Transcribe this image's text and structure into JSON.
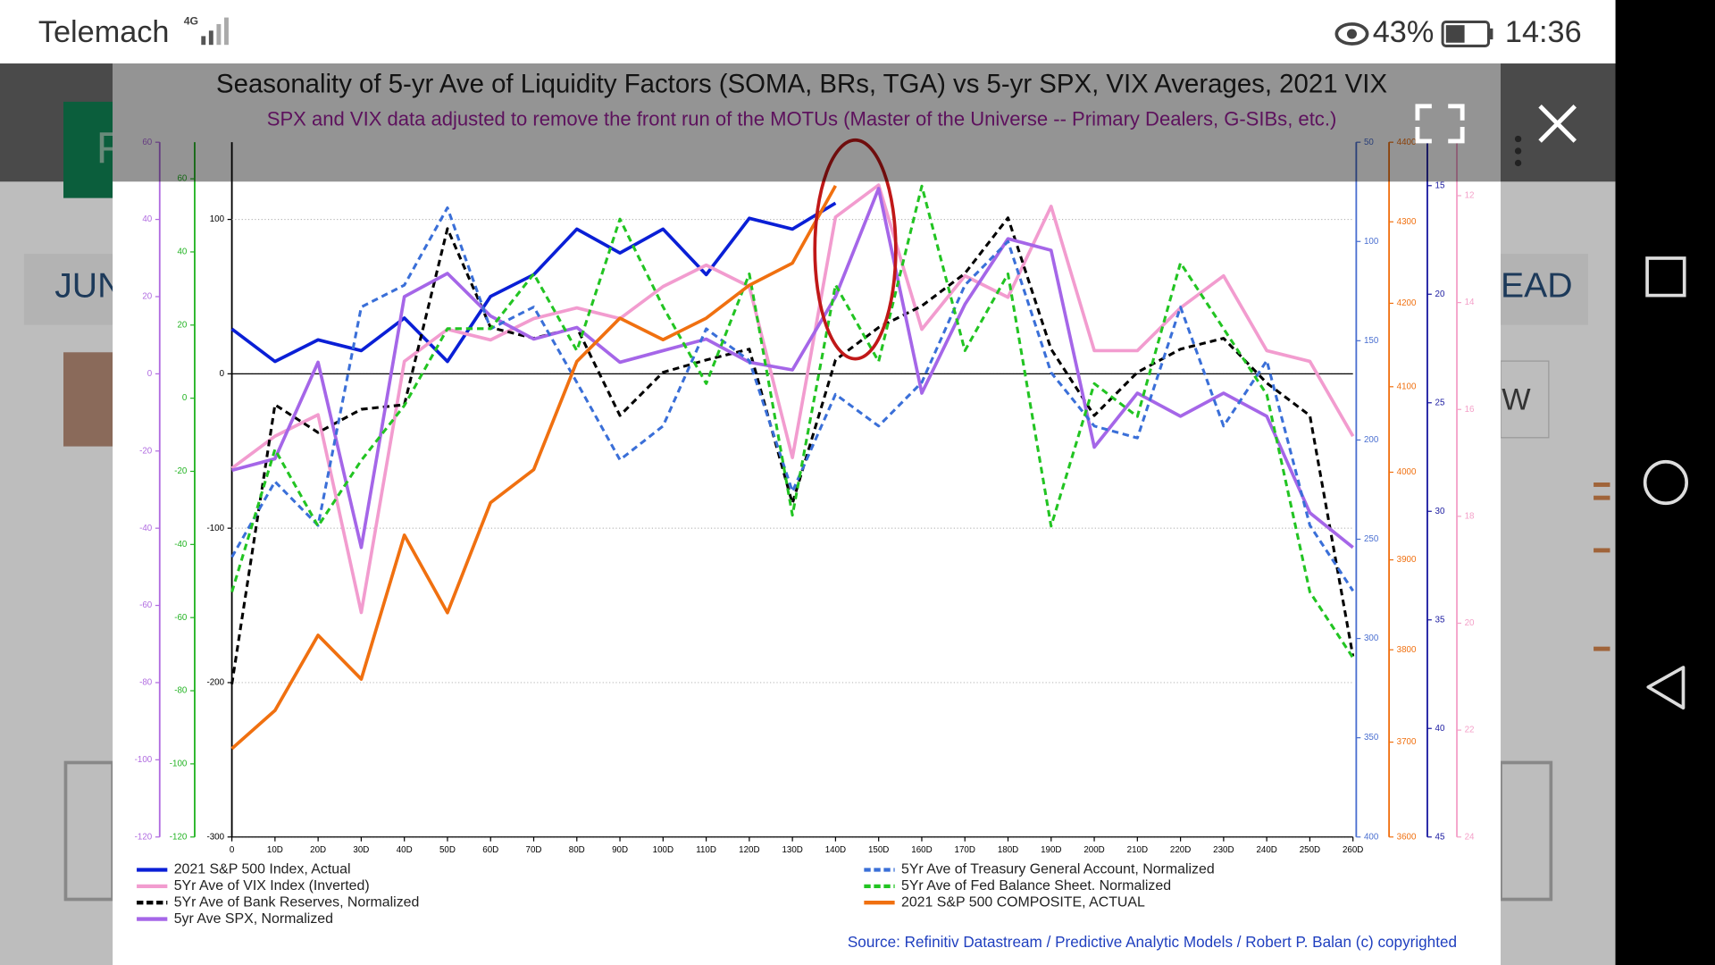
{
  "status_bar": {
    "carrier": "Telemach",
    "network": "4G",
    "battery": "43%",
    "time": "14:36"
  },
  "background_app": {
    "texts": [
      "F",
      "JUN",
      "EAD",
      "W"
    ]
  },
  "chart_data": {
    "type": "line",
    "title": "Seasonality of 5-yr Ave of Liquidity Factors (SOMA, BRs, TGA) vs 5-yr SPX, VIX Averages, 2021 VIX",
    "subtitle": "SPX and VIX data adjusted to remove the front run of the MOTUs (Master of the Universe -- Primary Dealers, G-SIBs, etc.)",
    "source": "Source: Refinitiv Datastream / Predictive Analytic Models / Robert P. Balan (c) copyrighted",
    "x": [
      0,
      10,
      20,
      30,
      40,
      50,
      60,
      70,
      80,
      90,
      100,
      110,
      120,
      130,
      140,
      150,
      160,
      170,
      180,
      190,
      200,
      210,
      220,
      230,
      240,
      250,
      260
    ],
    "xlim": [
      0,
      260
    ],
    "xticks": [
      0,
      {
        "value": 10,
        "label": "10D"
      },
      {
        "value": 20,
        "label": "20D"
      },
      {
        "value": 30,
        "label": "30D"
      },
      {
        "value": 40,
        "label": "40D"
      },
      {
        "value": 50,
        "label": "50D"
      },
      {
        "value": 60,
        "label": "60D"
      },
      {
        "value": 70,
        "label": "70D"
      },
      {
        "value": 80,
        "label": "80D"
      },
      {
        "value": 90,
        "label": "90D"
      },
      {
        "value": 100,
        "label": "100D"
      },
      {
        "value": 110,
        "label": "110D"
      },
      {
        "value": 120,
        "label": "120D"
      },
      {
        "value": 130,
        "label": "130D"
      },
      {
        "value": 140,
        "label": "140D"
      },
      {
        "value": 150,
        "label": "150D"
      },
      {
        "value": 160,
        "label": "160D"
      },
      {
        "value": 170,
        "label": "170D"
      },
      {
        "value": 180,
        "label": "180D"
      },
      {
        "value": 190,
        "label": "190D"
      },
      {
        "value": 200,
        "label": "200D"
      },
      {
        "value": 210,
        "label": "210D"
      },
      {
        "value": 220,
        "label": "220D"
      },
      {
        "value": 230,
        "label": "230D"
      },
      {
        "value": 240,
        "label": "240D"
      },
      {
        "value": 250,
        "label": "250D"
      },
      {
        "value": 260,
        "label": "260D"
      }
    ],
    "axes": [
      {
        "color": "#b06be0",
        "ylim": [
          -120,
          60
        ],
        "yticks": [
          -120,
          -100,
          -80,
          -60,
          -40,
          -20,
          0,
          20,
          40,
          60
        ]
      },
      {
        "color": "#22b322",
        "ylim": [
          -120,
          70
        ],
        "yticks": [
          -120,
          -100,
          -80,
          -60,
          -40,
          -20,
          0,
          20,
          40,
          60
        ]
      },
      {
        "color": "#000000",
        "ylim": [
          -300,
          150
        ],
        "yticks": [
          -300,
          -200,
          -100,
          0,
          100
        ],
        "grid": true
      },
      {
        "color": "#4a6fd0",
        "ylim": [
          400,
          50
        ],
        "yticks": [
          400,
          350,
          300,
          250,
          200,
          150,
          100,
          50
        ]
      },
      {
        "color": "#f07010",
        "ylim": [
          3600,
          4400
        ],
        "log": true,
        "yticks": [
          3600,
          3700,
          3800,
          3900,
          4000,
          4100,
          4200,
          4300,
          4400
        ]
      },
      {
        "color": "#1a1aa0",
        "ylim": [
          45,
          13
        ],
        "yticks": [
          45,
          40,
          35,
          30,
          25,
          20,
          15
        ]
      },
      {
        "color": "#f4a0c8",
        "ylim": [
          24,
          11
        ],
        "yticks": [
          24,
          22,
          20,
          18,
          16,
          14,
          12
        ]
      }
    ],
    "series": [
      {
        "name": "2021 S&P 500 Index, Actual",
        "color": "#0a1fd6",
        "dashed": false,
        "axis": 5,
        "values": [
          21.6,
          23.1,
          22.1,
          22.6,
          21.1,
          23.1,
          20.1,
          19.1,
          17.0,
          18.1,
          17.0,
          19.1,
          16.5,
          17.0,
          15.8,
          null,
          null,
          null,
          null,
          null,
          null,
          null,
          null,
          null,
          null,
          null,
          null
        ]
      },
      {
        "name": "5Yr Ave of VIX Index (Inverted)",
        "color": "#f29ccf",
        "dashed": false,
        "axis": 6,
        "values": [
          17.1,
          16.5,
          16.1,
          19.8,
          15.1,
          14.5,
          14.7,
          14.3,
          14.1,
          14.3,
          13.7,
          13.3,
          13.7,
          16.9,
          12.4,
          11.8,
          14.5,
          13.5,
          13.9,
          12.2,
          14.9,
          14.9,
          14.1,
          13.5,
          14.9,
          15.1,
          16.5
        ]
      },
      {
        "name": "5Yr Ave of Bank Reserves, Normalized",
        "color": "#000000",
        "dashed": true,
        "axis": 2,
        "values": [
          -201,
          -20,
          -38,
          -23,
          -20,
          94,
          30,
          23,
          30,
          -27,
          1,
          9,
          16,
          -84,
          9,
          30,
          44,
          65,
          101,
          16,
          -27,
          1,
          16,
          23,
          -6,
          -27,
          -183
        ]
      },
      {
        "name": "5yr Ave SPX, Normalized",
        "color": "#a566e8",
        "dashed": false,
        "axis": 0,
        "values": [
          -25,
          -22,
          3,
          -45,
          20,
          26,
          15,
          9,
          12,
          3,
          6,
          9,
          3,
          1,
          20,
          48,
          -5,
          18,
          35,
          32,
          -19,
          -5,
          -11,
          -5,
          -11,
          -36,
          -45
        ]
      },
      {
        "name": "5Yr Ave of Treasury General Account, Normalized",
        "color": "#3a6fd8",
        "dashed": true,
        "axis": 3,
        "values": [
          259,
          221,
          243,
          133,
          122,
          83,
          144,
          133,
          171,
          210,
          193,
          144,
          160,
          226,
          177,
          193,
          171,
          122,
          100,
          166,
          193,
          199,
          133,
          193,
          160,
          243,
          276
        ]
      },
      {
        "name": "5Yr Ave of Fed Balance Sheet. Normalized",
        "color": "#22c422",
        "dashed": true,
        "axis": 1,
        "values": [
          -53,
          -14,
          -35,
          -17,
          -2,
          19,
          19,
          34,
          13,
          49,
          25,
          4,
          34,
          -32,
          31,
          10,
          58,
          13,
          34,
          -35,
          4,
          -5,
          37,
          19,
          1,
          -53,
          -71
        ]
      },
      {
        "name": "2021 S&P 500 COMPOSITE, ACTUAL",
        "color": "#f07010",
        "dashed": false,
        "axis": 4,
        "values": [
          3693,
          3734,
          3816,
          3768,
          3928,
          3841,
          3965,
          4003,
          4130,
          4182,
          4156,
          4182,
          4222,
          4249,
          4345,
          null,
          null,
          null,
          null,
          null,
          null,
          null,
          null,
          null,
          null,
          null,
          null
        ]
      }
    ]
  }
}
